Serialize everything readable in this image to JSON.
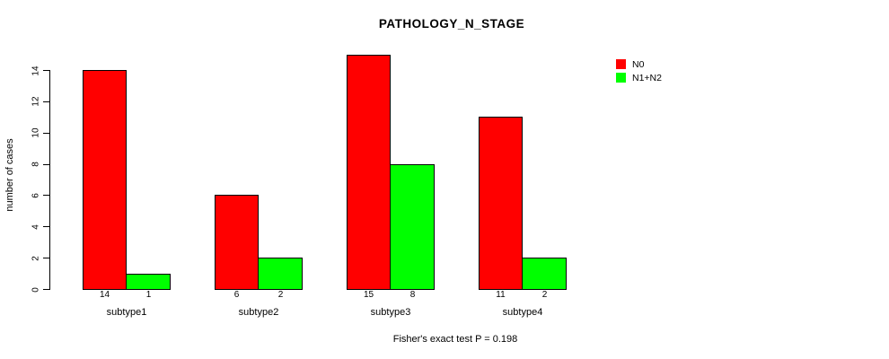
{
  "chart_data": {
    "type": "bar",
    "title": "PATHOLOGY_N_STAGE",
    "xlabel": "",
    "ylabel": "number of cases",
    "categories": [
      "subtype1",
      "subtype2",
      "subtype3",
      "subtype4"
    ],
    "series": [
      {
        "name": "N0",
        "color": "#ff0000",
        "values": [
          14,
          6,
          15,
          11
        ]
      },
      {
        "name": "N1+N2",
        "color": "#00ff00",
        "values": [
          1,
          2,
          8,
          2
        ]
      }
    ],
    "bar_value_labels": [
      [
        "14",
        "1"
      ],
      [
        "6",
        "2"
      ],
      [
        "15",
        "8"
      ],
      [
        "11",
        "2"
      ]
    ],
    "yticks": [
      0,
      2,
      4,
      6,
      8,
      10,
      12,
      14
    ],
    "ylim": [
      0,
      15
    ],
    "grid": false,
    "legend_position": "top-right",
    "annotation": "Fisher's exact test P = 0.198",
    "bar_border_color": "#000000"
  }
}
